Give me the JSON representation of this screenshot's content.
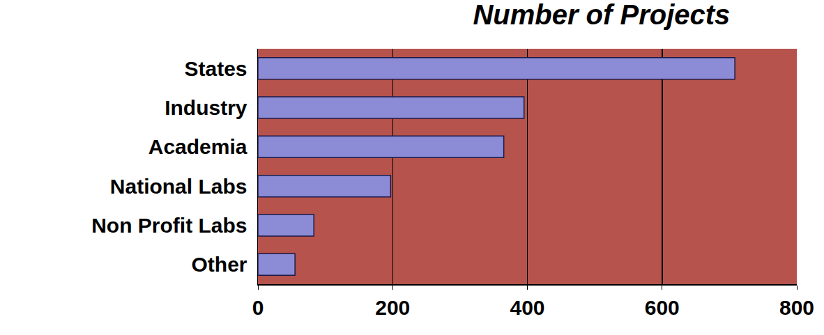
{
  "chart_data": {
    "type": "bar",
    "title": "Number of Projects",
    "orientation": "horizontal",
    "categories": [
      "States",
      "Industry",
      "Academia",
      "National Labs",
      "Non Profit Labs",
      "Other"
    ],
    "values": [
      708,
      395,
      365,
      197,
      83,
      55
    ],
    "color": "#8c8cd6",
    "xlim": [
      0,
      800
    ],
    "xticks": [
      0,
      200,
      400,
      600,
      800
    ],
    "grid": true
  }
}
